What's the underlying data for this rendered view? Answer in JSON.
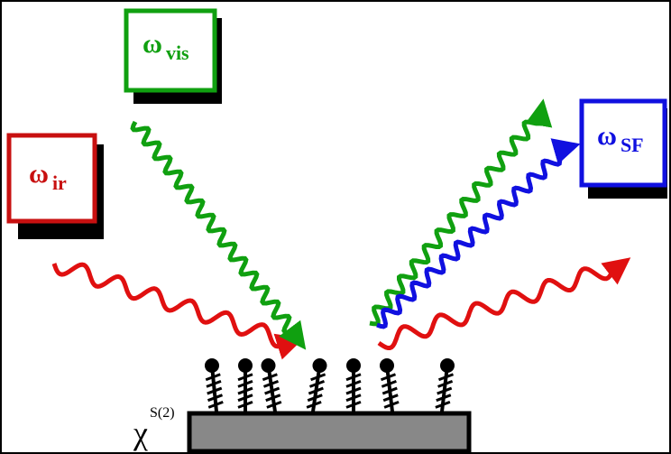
{
  "labels": {
    "ir": {
      "symbol": "ω",
      "subscript": "ir"
    },
    "vis": {
      "symbol": "ω",
      "subscript": "vis"
    },
    "sf": {
      "symbol": "ω",
      "subscript": "SF"
    }
  },
  "susceptibility": {
    "symbol": "χ",
    "superscript": "S(2)"
  }
}
